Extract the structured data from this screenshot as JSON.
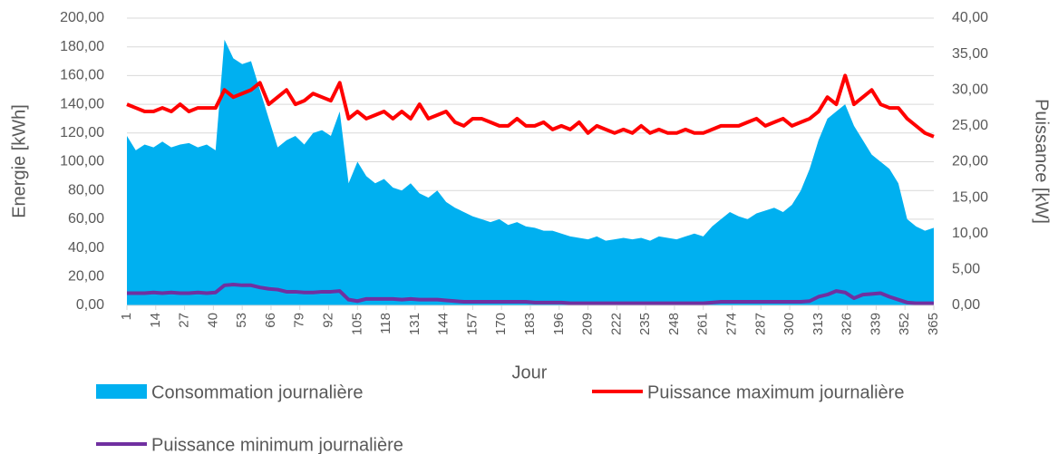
{
  "chart_data": {
    "type": "line",
    "x_label": "Jour",
    "y_label": "Energie [kWh]",
    "y2_label": "Puissance [kW]",
    "x": [
      1,
      5,
      9,
      13,
      17,
      21,
      25,
      29,
      33,
      37,
      41,
      45,
      49,
      53,
      57,
      61,
      65,
      69,
      73,
      77,
      81,
      85,
      89,
      93,
      97,
      101,
      105,
      109,
      113,
      117,
      121,
      125,
      129,
      133,
      137,
      141,
      145,
      149,
      153,
      157,
      161,
      165,
      169,
      173,
      177,
      181,
      185,
      189,
      193,
      197,
      201,
      205,
      209,
      213,
      217,
      221,
      225,
      229,
      233,
      237,
      241,
      245,
      249,
      253,
      257,
      261,
      265,
      269,
      273,
      277,
      281,
      285,
      289,
      293,
      297,
      301,
      305,
      309,
      313,
      317,
      321,
      325,
      329,
      333,
      337,
      341,
      345,
      349,
      353,
      357,
      361,
      365
    ],
    "xlim": [
      1,
      365
    ],
    "xticks": [
      1,
      14,
      27,
      40,
      53,
      66,
      79,
      92,
      105,
      118,
      131,
      144,
      157,
      170,
      183,
      196,
      209,
      222,
      235,
      248,
      261,
      274,
      287,
      300,
      313,
      326,
      339,
      352,
      365
    ],
    "ylim": [
      0,
      200
    ],
    "yticks": [
      {
        "value": 0,
        "label": "0,00"
      },
      {
        "value": 20,
        "label": "20,00"
      },
      {
        "value": 40,
        "label": "40,00"
      },
      {
        "value": 60,
        "label": "60,00"
      },
      {
        "value": 80,
        "label": "80,00"
      },
      {
        "value": 100,
        "label": "100,00"
      },
      {
        "value": 120,
        "label": "120,00"
      },
      {
        "value": 140,
        "label": "140,00"
      },
      {
        "value": 160,
        "label": "160,00"
      },
      {
        "value": 180,
        "label": "180,00"
      },
      {
        "value": 200,
        "label": "200,00"
      }
    ],
    "y2lim": [
      0,
      40
    ],
    "y2ticks": [
      {
        "value": 0,
        "label": "0,00"
      },
      {
        "value": 5,
        "label": "5,00"
      },
      {
        "value": 10,
        "label": "10,00"
      },
      {
        "value": 15,
        "label": "15,00"
      },
      {
        "value": 20,
        "label": "20,00"
      },
      {
        "value": 25,
        "label": "25,00"
      },
      {
        "value": 30,
        "label": "30,00"
      },
      {
        "value": 35,
        "label": "35,00"
      },
      {
        "value": 40,
        "label": "40,00"
      }
    ],
    "series": [
      {
        "name": "Consommation  journalière",
        "type": "area",
        "color": "#00b0f0",
        "values": [
          118,
          108,
          112,
          110,
          114,
          110,
          112,
          113,
          110,
          112,
          108,
          185,
          172,
          168,
          170,
          150,
          130,
          110,
          115,
          118,
          112,
          120,
          122,
          118,
          135,
          85,
          100,
          90,
          85,
          88,
          82,
          80,
          85,
          78,
          75,
          80,
          72,
          68,
          65,
          62,
          60,
          58,
          60,
          56,
          58,
          55,
          54,
          52,
          52,
          50,
          48,
          47,
          46,
          48,
          45,
          46,
          47,
          46,
          47,
          45,
          48,
          47,
          46,
          48,
          50,
          48,
          55,
          60,
          65,
          62,
          60,
          64,
          66,
          68,
          65,
          70,
          80,
          95,
          115,
          130,
          135,
          140,
          125,
          115,
          105,
          100,
          95,
          85,
          60,
          55,
          52,
          54
        ]
      },
      {
        "name": "Puissance maximum journalière",
        "type": "line",
        "axis": "y2",
        "color": "#ff0000",
        "values": [
          28,
          27.5,
          27,
          27,
          27.5,
          27,
          28,
          27,
          27.5,
          27.5,
          27.5,
          30,
          29,
          29.5,
          30,
          31,
          28,
          29,
          30,
          28,
          28.5,
          29.5,
          29,
          28.5,
          31,
          26,
          27,
          26,
          26.5,
          27,
          26,
          27,
          26,
          28,
          26,
          26.5,
          27,
          25.5,
          25,
          26,
          26,
          25.5,
          25,
          25,
          26,
          25,
          25,
          25.5,
          24.5,
          25,
          24.5,
          25.5,
          24,
          25,
          24.5,
          24,
          24.5,
          24,
          25,
          24,
          24.5,
          24,
          24,
          24.5,
          24,
          24,
          24.5,
          25,
          25,
          25,
          25.5,
          26,
          25,
          25.5,
          26,
          25,
          25.5,
          26,
          27,
          29,
          28,
          32,
          28,
          29,
          30,
          28,
          27.5,
          27.5,
          26,
          25,
          24,
          23.5
        ]
      },
      {
        "name": "Puissance minimum journalière",
        "type": "line",
        "axis": "y2",
        "color": "#7030a0",
        "values": [
          1.7,
          1.7,
          1.7,
          1.8,
          1.7,
          1.8,
          1.7,
          1.7,
          1.8,
          1.7,
          1.8,
          2.8,
          2.9,
          2.8,
          2.8,
          2.5,
          2.3,
          2.2,
          1.9,
          1.9,
          1.8,
          1.8,
          1.9,
          1.9,
          2.0,
          0.8,
          0.6,
          0.9,
          0.9,
          0.9,
          0.9,
          0.8,
          0.9,
          0.8,
          0.8,
          0.8,
          0.7,
          0.6,
          0.5,
          0.5,
          0.5,
          0.5,
          0.5,
          0.5,
          0.5,
          0.5,
          0.4,
          0.4,
          0.4,
          0.4,
          0.3,
          0.3,
          0.3,
          0.3,
          0.3,
          0.3,
          0.3,
          0.3,
          0.3,
          0.3,
          0.3,
          0.3,
          0.3,
          0.3,
          0.3,
          0.3,
          0.4,
          0.5,
          0.5,
          0.5,
          0.5,
          0.5,
          0.5,
          0.5,
          0.5,
          0.5,
          0.5,
          0.6,
          1.2,
          1.5,
          2.0,
          1.8,
          1.0,
          1.5,
          1.6,
          1.7,
          1.2,
          0.8,
          0.4,
          0.3,
          0.3,
          0.3
        ]
      }
    ],
    "grid": true
  }
}
